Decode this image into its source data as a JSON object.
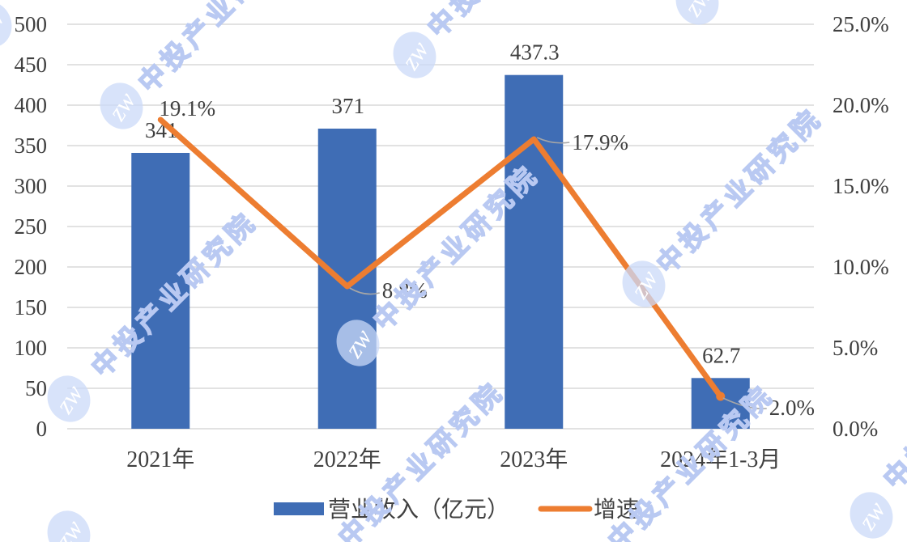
{
  "chart_data": {
    "type": "combo",
    "subtype": "bar+line",
    "categories": [
      "2021年",
      "2022年",
      "2023年",
      "2024年1-3月"
    ],
    "series": [
      {
        "name": "营业收入（亿元）",
        "type": "bar",
        "axis": "left",
        "values": [
          341,
          371,
          437.3,
          62.7
        ],
        "data_labels": [
          "341",
          "371",
          "437.3",
          "62.7"
        ],
        "color": "#3F6DB5"
      },
      {
        "name": "增速",
        "type": "line",
        "axis": "right",
        "values": [
          19.1,
          8.8,
          17.9,
          2.0
        ],
        "data_labels": [
          "19.1%",
          "8.8%",
          "17.9%",
          "2.0%"
        ],
        "color": "#ED7D31"
      }
    ],
    "left_axis": {
      "range": [
        0,
        500
      ],
      "step": 50,
      "tick_labels": [
        "0",
        "50",
        "100",
        "150",
        "200",
        "250",
        "300",
        "350",
        "400",
        "450",
        "500"
      ]
    },
    "right_axis": {
      "range": [
        0,
        25
      ],
      "step": 5,
      "tick_labels": [
        "0.0%",
        "5.0%",
        "10.0%",
        "15.0%",
        "20.0%",
        "25.0%"
      ]
    },
    "gridlines": "horizontal",
    "legend": {
      "position": "bottom",
      "entries": [
        "营业收入（亿元）",
        "增速"
      ]
    }
  },
  "watermark": {
    "text": "中投产业研究院",
    "logo_monogram": "zw"
  },
  "colors": {
    "bar": "#3F6DB5",
    "line": "#ED7D31",
    "grid": "#D9D9D9",
    "axis_text": "#404040",
    "label_text": "#3F3F3F",
    "leader": "#A6A6A6",
    "watermark_stroke": "#B9C9F2",
    "watermark_fill": "#CBDAF8",
    "background": "#FFFFFF"
  }
}
